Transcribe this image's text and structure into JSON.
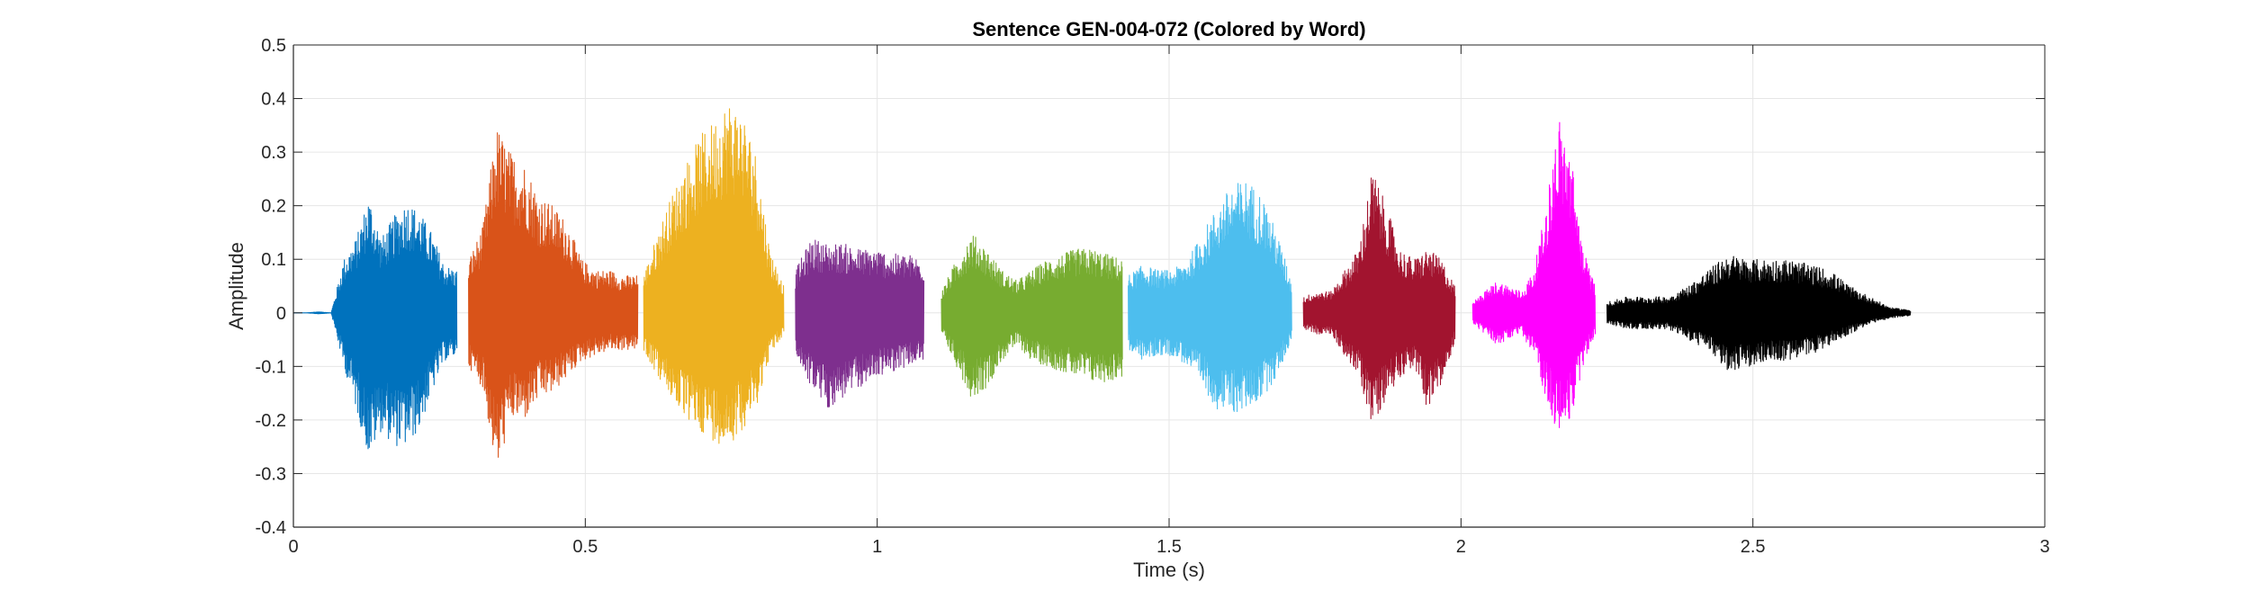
{
  "chart_data": {
    "type": "line",
    "title": "Sentence GEN-004-072 (Colored by Word)",
    "xlabel": "Time (s)",
    "ylabel": "Amplitude",
    "xlim": [
      0,
      3
    ],
    "ylim": [
      -0.4,
      0.5
    ],
    "xticks": [
      0,
      0.5,
      1,
      1.5,
      2,
      2.5,
      3
    ],
    "yticks": [
      -0.4,
      -0.3,
      -0.2,
      -0.1,
      0,
      0.1,
      0.2,
      0.3,
      0.4,
      0.5
    ],
    "grid": true,
    "series": [
      {
        "color": "#0072BD",
        "t_start": 0.0,
        "t_end": 0.28,
        "env_max": [
          0.0,
          0.0,
          0.002,
          0.0,
          0.1,
          0.14,
          0.22,
          0.14,
          0.18,
          0.21,
          0.19,
          0.15,
          0.09,
          0.08
        ],
        "env_min": [
          0.0,
          0.0,
          -0.002,
          0.0,
          -0.1,
          -0.18,
          -0.27,
          -0.22,
          -0.25,
          -0.25,
          -0.22,
          -0.15,
          -0.09,
          -0.08
        ]
      },
      {
        "color": "#D95319",
        "t_start": 0.3,
        "t_end": 0.59,
        "env_max": [
          0.1,
          0.16,
          0.35,
          0.3,
          0.28,
          0.22,
          0.2,
          0.17,
          0.1,
          0.08,
          0.08,
          0.07,
          0.07
        ],
        "env_min": [
          -0.1,
          -0.14,
          -0.3,
          -0.2,
          -0.2,
          -0.16,
          -0.15,
          -0.12,
          -0.09,
          -0.08,
          -0.07,
          -0.07,
          -0.07
        ]
      },
      {
        "color": "#EDB120",
        "t_start": 0.6,
        "t_end": 0.84,
        "env_max": [
          0.07,
          0.15,
          0.22,
          0.28,
          0.33,
          0.36,
          0.4,
          0.38,
          0.3,
          0.12,
          0.05
        ],
        "env_min": [
          -0.07,
          -0.12,
          -0.16,
          -0.2,
          -0.22,
          -0.24,
          -0.25,
          -0.22,
          -0.18,
          -0.08,
          -0.04
        ]
      },
      {
        "color": "#7E2F8E",
        "t_start": 0.86,
        "t_end": 1.08,
        "env_max": [
          0.08,
          0.14,
          0.13,
          0.13,
          0.12,
          0.12,
          0.11,
          0.11,
          0.1
        ],
        "env_min": [
          -0.08,
          -0.14,
          -0.18,
          -0.16,
          -0.14,
          -0.12,
          -0.11,
          -0.1,
          -0.09
        ]
      },
      {
        "color": "#77AC30",
        "t_start": 1.11,
        "t_end": 1.42,
        "env_max": [
          0.04,
          0.1,
          0.15,
          0.12,
          0.08,
          0.06,
          0.08,
          0.1,
          0.11,
          0.12,
          0.12,
          0.11,
          0.1
        ],
        "env_min": [
          -0.04,
          -0.1,
          -0.16,
          -0.14,
          -0.09,
          -0.06,
          -0.09,
          -0.1,
          -0.11,
          -0.12,
          -0.13,
          -0.13,
          -0.12
        ]
      },
      {
        "color": "#4DBEEE",
        "t_start": 1.43,
        "t_end": 1.71,
        "env_max": [
          0.07,
          0.09,
          0.08,
          0.08,
          0.1,
          0.15,
          0.2,
          0.24,
          0.25,
          0.22,
          0.15,
          0.06
        ],
        "env_min": [
          -0.07,
          -0.09,
          -0.08,
          -0.08,
          -0.1,
          -0.14,
          -0.18,
          -0.19,
          -0.18,
          -0.16,
          -0.12,
          -0.05
        ]
      },
      {
        "color": "#A2142F",
        "t_start": 1.73,
        "t_end": 1.99,
        "env_max": [
          0.03,
          0.04,
          0.04,
          0.08,
          0.12,
          0.27,
          0.2,
          0.12,
          0.1,
          0.12,
          0.1,
          0.05
        ],
        "env_min": [
          -0.03,
          -0.04,
          -0.04,
          -0.08,
          -0.12,
          -0.21,
          -0.16,
          -0.12,
          -0.1,
          -0.18,
          -0.14,
          -0.05
        ]
      },
      {
        "color": "#FF00FF",
        "t_start": 2.02,
        "t_end": 2.23,
        "env_max": [
          0.02,
          0.04,
          0.06,
          0.05,
          0.04,
          0.08,
          0.2,
          0.37,
          0.3,
          0.12,
          0.05
        ],
        "env_min": [
          -0.02,
          -0.04,
          -0.06,
          -0.05,
          -0.04,
          -0.08,
          -0.16,
          -0.23,
          -0.2,
          -0.1,
          -0.04
        ]
      },
      {
        "color": "#000000",
        "t_start": 2.25,
        "t_end": 2.77,
        "env_max": [
          0.02,
          0.03,
          0.03,
          0.03,
          0.05,
          0.08,
          0.11,
          0.1,
          0.1,
          0.1,
          0.09,
          0.08,
          0.05,
          0.03,
          0.01,
          0.005
        ],
        "env_min": [
          -0.02,
          -0.03,
          -0.03,
          -0.03,
          -0.05,
          -0.07,
          -0.11,
          -0.1,
          -0.09,
          -0.09,
          -0.08,
          -0.06,
          -0.04,
          -0.02,
          -0.01,
          -0.005
        ]
      }
    ]
  }
}
